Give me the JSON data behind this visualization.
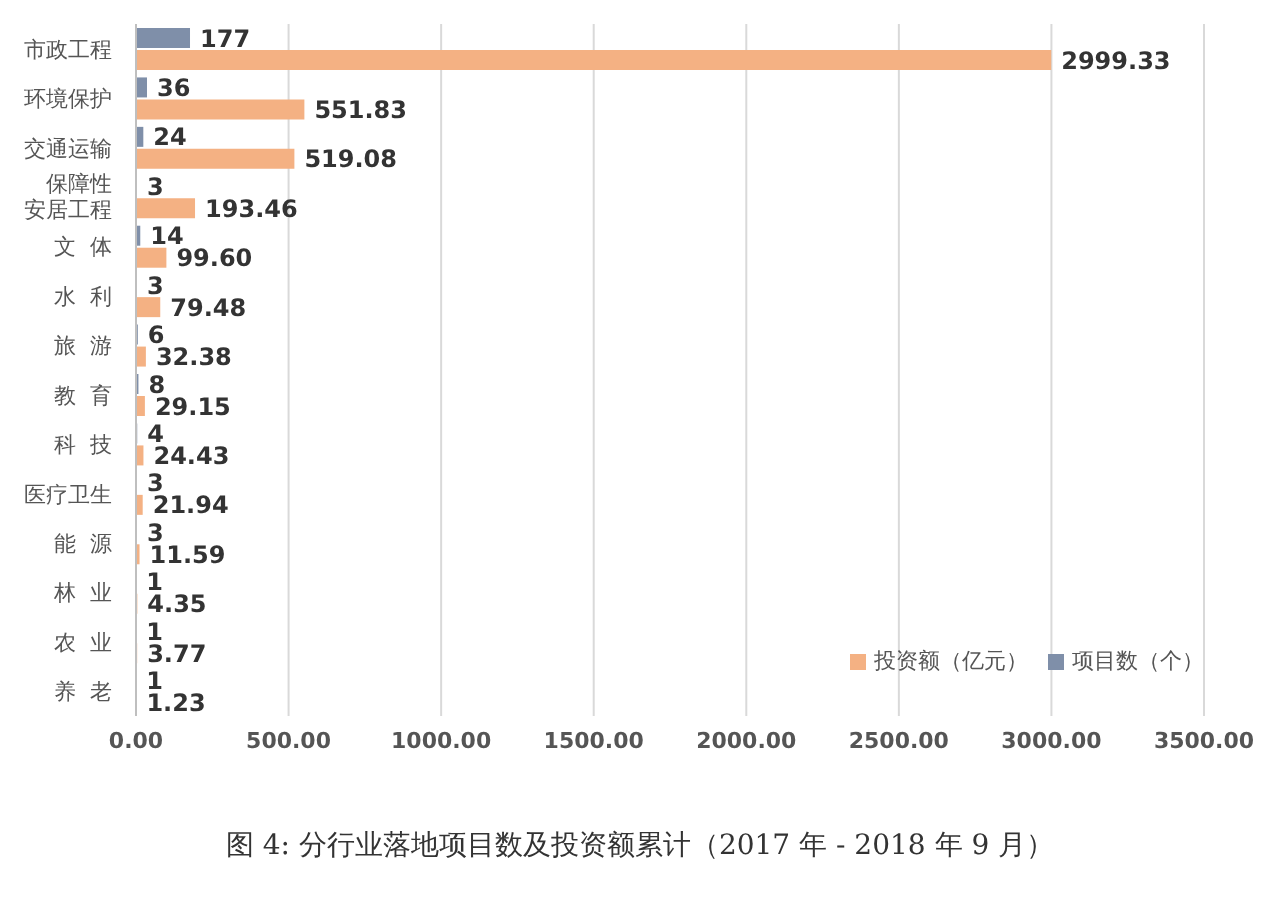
{
  "chart_data": {
    "type": "bar",
    "orientation": "horizontal",
    "title": "图 4:  分行业落地项目数及投资额累计（2017 年 - 2018 年 9 月）",
    "categories": [
      "市政工程",
      "环境保护",
      "交通运输",
      "保障性安居工程",
      "文  体",
      "水  利",
      "旅  游",
      "教  育",
      "科  技",
      "医疗卫生",
      "能  源",
      "林  业",
      "农  业",
      "养  老"
    ],
    "series": [
      {
        "name": "项目数（个）",
        "color": "#7f8fa9",
        "values": [
          177,
          36,
          24,
          3,
          14,
          3,
          6,
          8,
          4,
          3,
          3,
          1,
          1,
          1
        ],
        "value_labels": [
          "177",
          "36",
          "24",
          "3",
          "14",
          "3",
          "6",
          "8",
          "4",
          "3",
          "3",
          "1",
          "1",
          "1"
        ]
      },
      {
        "name": "投资额（亿元）",
        "color": "#f4b183",
        "values": [
          2999.33,
          551.83,
          519.08,
          193.46,
          99.6,
          79.48,
          32.38,
          29.15,
          24.43,
          21.94,
          11.59,
          4.35,
          3.77,
          1.23
        ],
        "value_labels": [
          "2999.33",
          "551.83",
          "519.08",
          "193.46",
          "99.60",
          "79.48",
          "32.38",
          "29.15",
          "24.43",
          "21.94",
          "11.59",
          "4.35",
          "3.77",
          "1.23"
        ]
      }
    ],
    "xlim": [
      0,
      3500
    ],
    "xticks": [
      {
        "value": 0,
        "label": "0.00"
      },
      {
        "value": 500,
        "label": "500.00"
      },
      {
        "value": 1000,
        "label": "1000.00"
      },
      {
        "value": 1500,
        "label": "1500.00"
      },
      {
        "value": 2000,
        "label": "2000.00"
      },
      {
        "value": 2500,
        "label": "2500.00"
      },
      {
        "value": 3000,
        "label": "3000.00"
      },
      {
        "value": 3500,
        "label": "3500.00"
      }
    ],
    "grid": "x",
    "legend": "bottom right"
  }
}
